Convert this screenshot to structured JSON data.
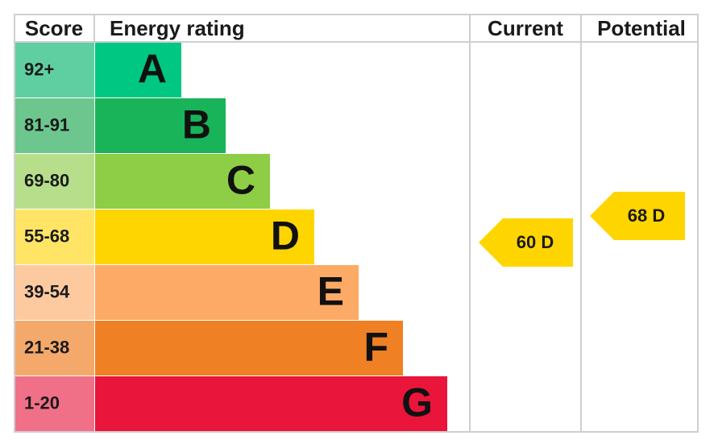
{
  "header": {
    "score": "Score",
    "rating": "Energy rating",
    "current": "Current",
    "potential": "Potential"
  },
  "bands": [
    {
      "score": "92+",
      "letter": "A",
      "color": "#00c781",
      "light": "#5fcfa2"
    },
    {
      "score": "81-91",
      "letter": "B",
      "color": "#19b459",
      "light": "#6cc68e"
    },
    {
      "score": "69-80",
      "letter": "C",
      "color": "#8dce46",
      "light": "#b7df8b"
    },
    {
      "score": "55-68",
      "letter": "D",
      "color": "#ffd500",
      "light": "#ffe466"
    },
    {
      "score": "39-54",
      "letter": "E",
      "color": "#fcaa65",
      "light": "#fdcaa0"
    },
    {
      "score": "21-38",
      "letter": "F",
      "color": "#ef8023",
      "light": "#f4a96b"
    },
    {
      "score": "1-20",
      "letter": "G",
      "color": "#e9153b",
      "light": "#f07088"
    }
  ],
  "current": {
    "label": "60 D",
    "color": "#ffd500"
  },
  "potential": {
    "label": "68 D",
    "color": "#ffd500"
  }
}
